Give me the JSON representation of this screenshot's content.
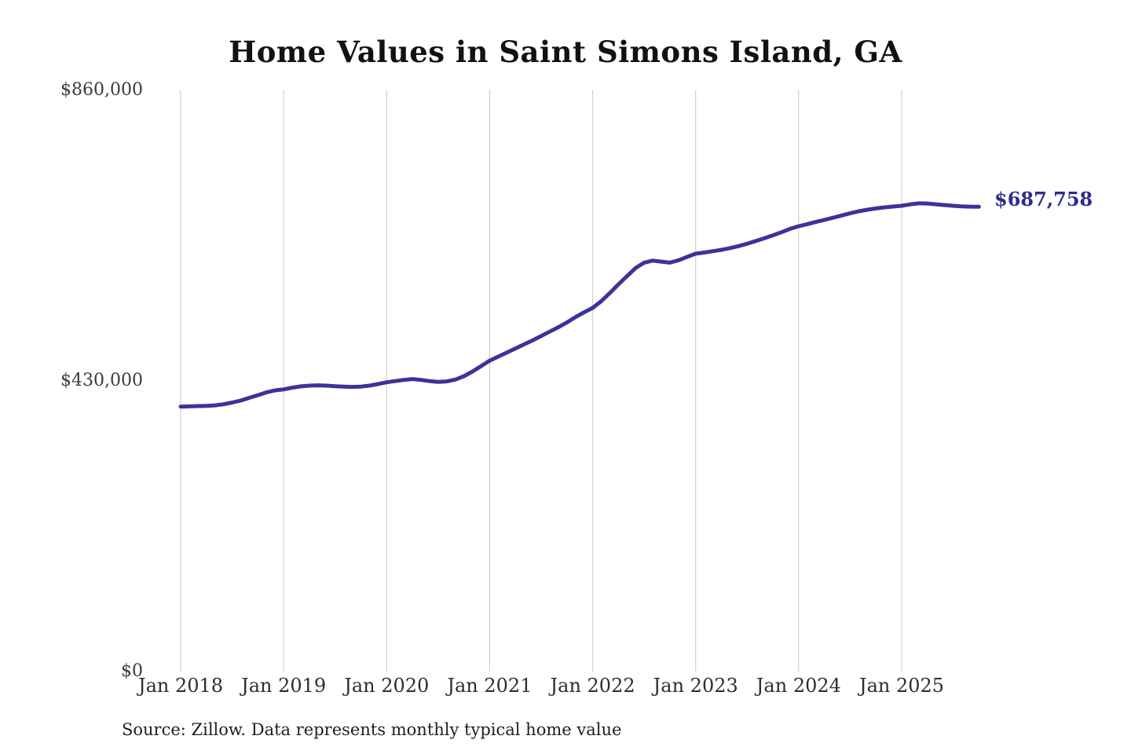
{
  "page": {
    "background_color": "#ffffff"
  },
  "chart": {
    "title": "Home Values in Saint Simons Island, GA",
    "source_note": "Source: Zillow. Data represents monthly typical home value",
    "end_label": "$687,758",
    "colors": {
      "line": "#3b3497",
      "end_label": "#2f2b8c",
      "grid": "#c8c8c8",
      "title": "#121212",
      "axis_text": "#3a3a3a"
    }
  },
  "chart_data": {
    "type": "line",
    "title": "Home Values in Saint Simons Island, GA",
    "xlabel": "",
    "ylabel": "",
    "ylim": [
      0,
      860000
    ],
    "grid": "vertical-only",
    "legend": null,
    "series_name": "Monthly typical home value",
    "last_value": 687758,
    "last_value_label": "$687,758",
    "y_ticks": [
      {
        "label": "$860,000",
        "value": 860000
      },
      {
        "label": "$430,000",
        "value": 430000
      },
      {
        "label": "$0",
        "value": 0
      }
    ],
    "xtick_labels": [
      "Jan 2018",
      "Jan 2019",
      "Jan 2020",
      "Jan 2021",
      "Jan 2022",
      "Jan 2023",
      "Jan 2024",
      "Jan 2025"
    ],
    "x": [
      "2018-01",
      "2018-02",
      "2018-03",
      "2018-04",
      "2018-05",
      "2018-06",
      "2018-07",
      "2018-08",
      "2018-09",
      "2018-10",
      "2018-11",
      "2018-12",
      "2019-01",
      "2019-02",
      "2019-03",
      "2019-04",
      "2019-05",
      "2019-06",
      "2019-07",
      "2019-08",
      "2019-09",
      "2019-10",
      "2019-11",
      "2019-12",
      "2020-01",
      "2020-02",
      "2020-03",
      "2020-04",
      "2020-05",
      "2020-06",
      "2020-07",
      "2020-08",
      "2020-09",
      "2020-10",
      "2020-11",
      "2020-12",
      "2021-01",
      "2021-02",
      "2021-03",
      "2021-04",
      "2021-05",
      "2021-06",
      "2021-07",
      "2021-08",
      "2021-09",
      "2021-10",
      "2021-11",
      "2021-12",
      "2022-01",
      "2022-02",
      "2022-03",
      "2022-04",
      "2022-05",
      "2022-06",
      "2022-07",
      "2022-08",
      "2022-09",
      "2022-10",
      "2022-11",
      "2022-12",
      "2023-01",
      "2023-02",
      "2023-03",
      "2023-04",
      "2023-05",
      "2023-06",
      "2023-07",
      "2023-08",
      "2023-09",
      "2023-10",
      "2023-11",
      "2023-12",
      "2024-01",
      "2024-02",
      "2024-03",
      "2024-04",
      "2024-05",
      "2024-06",
      "2024-07",
      "2024-08",
      "2024-09",
      "2024-10",
      "2024-11",
      "2024-12",
      "2025-01",
      "2025-02",
      "2025-03",
      "2025-04",
      "2025-05",
      "2025-06",
      "2025-07",
      "2025-08",
      "2025-09",
      "2025-10"
    ],
    "values": [
      392000,
      392300,
      392800,
      393200,
      393800,
      395500,
      398000,
      401000,
      405000,
      409000,
      413000,
      416000,
      417500,
      420000,
      422000,
      423000,
      423500,
      423000,
      422200,
      421600,
      421200,
      421600,
      423000,
      425500,
      428000,
      429800,
      431500,
      432800,
      431500,
      429800,
      428500,
      429300,
      432000,
      437000,
      444000,
      452000,
      460000,
      466000,
      472000,
      478000,
      484000,
      490000,
      496500,
      503000,
      509500,
      516500,
      524500,
      531500,
      538100,
      548000,
      560000,
      573000,
      585000,
      597000,
      605000,
      608000,
      606500,
      605000,
      608500,
      613500,
      618300,
      620000,
      622000,
      624000,
      626500,
      629500,
      633000,
      637000,
      641000,
      645500,
      650000,
      655000,
      659000,
      662000,
      665200,
      668300,
      671500,
      674800,
      678000,
      681000,
      683300,
      685200,
      686800,
      688000,
      689200,
      691200,
      692800,
      692500,
      691400,
      690200,
      689200,
      688400,
      687900,
      687758
    ]
  }
}
